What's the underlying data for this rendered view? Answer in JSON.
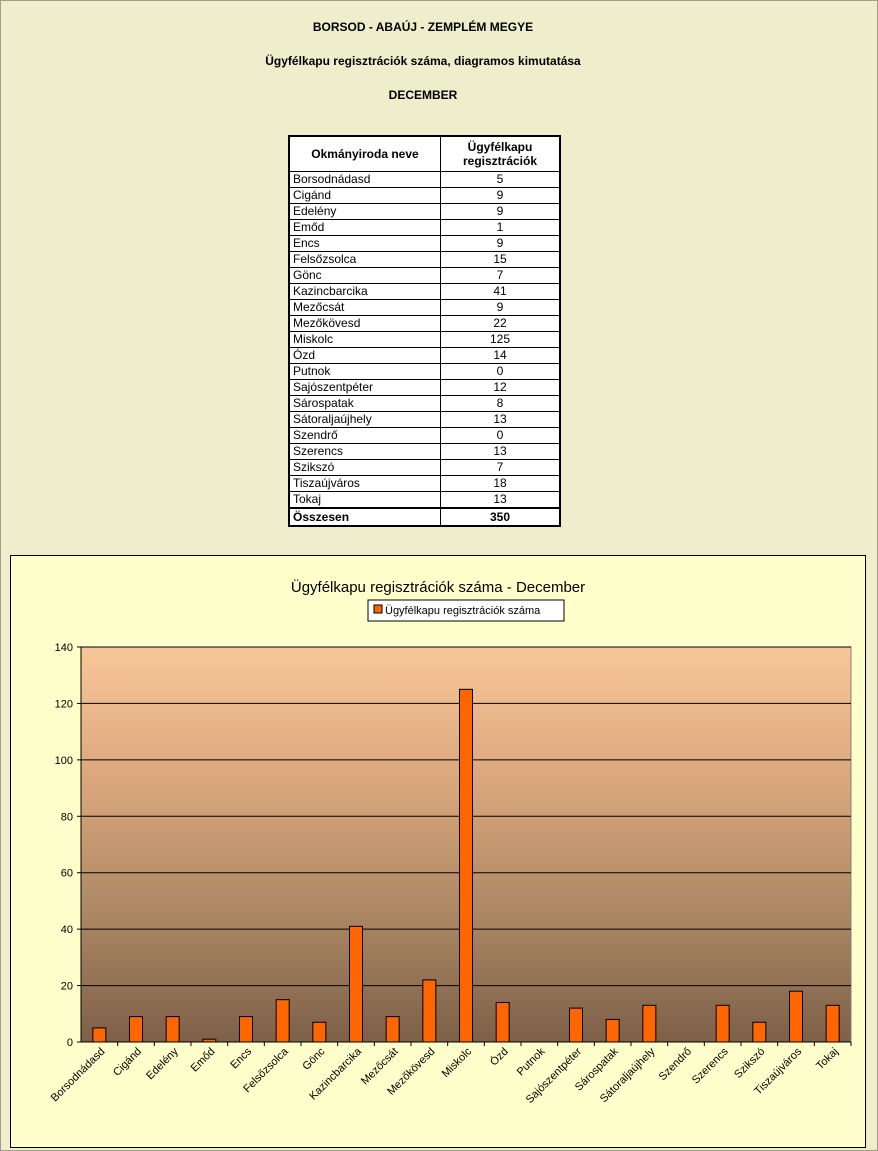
{
  "header": {
    "line1": "BORSOD - ABAÚJ - ZEMPLÉM MEGYE",
    "line2": "Ügyfélkapu regisztrációk száma, diagramos kimutatása",
    "line3": "DECEMBER"
  },
  "table": {
    "col1": "Okmányiroda neve",
    "col2_line1": "Ügyfélkapu",
    "col2_line2": "regisztrációk",
    "rows": [
      {
        "name": "Borsodnádasd",
        "value": "5"
      },
      {
        "name": "Cigánd",
        "value": "9"
      },
      {
        "name": "Edelény",
        "value": "9"
      },
      {
        "name": "Emőd",
        "value": "1"
      },
      {
        "name": "Encs",
        "value": "9"
      },
      {
        "name": "Felsőzsolca",
        "value": "15"
      },
      {
        "name": "Gönc",
        "value": "7"
      },
      {
        "name": "Kazincbarcika",
        "value": "41"
      },
      {
        "name": "Mezőcsát",
        "value": "9"
      },
      {
        "name": "Mezőkövesd",
        "value": "22"
      },
      {
        "name": "Miskolc",
        "value": "125"
      },
      {
        "name": "Ózd",
        "value": "14"
      },
      {
        "name": "Putnok",
        "value": "0"
      },
      {
        "name": "Sajószentpéter",
        "value": "12"
      },
      {
        "name": "Sárospatak",
        "value": "8"
      },
      {
        "name": "Sátoraljaújhely",
        "value": "13"
      },
      {
        "name": "Szendrő",
        "value": "0"
      },
      {
        "name": "Szerencs",
        "value": "13"
      },
      {
        "name": "Szikszó",
        "value": "7"
      },
      {
        "name": "Tiszaújváros",
        "value": "18"
      },
      {
        "name": "Tokaj",
        "value": "13"
      }
    ],
    "total_label": "Összesen",
    "total_value": "350"
  },
  "chart_data": {
    "type": "bar",
    "title": "Ügyfélkapu regisztrációk száma -   December",
    "legend": "top-center",
    "categories": [
      "Borsodnádasd",
      "Cigánd",
      "Edelény",
      "Emőd",
      "Encs",
      "Felsőzsolca",
      "Gönc",
      "Kazincbarcika",
      "Mezőcsát",
      "Mezőkövesd",
      "Miskolc",
      "Ózd",
      "Putnok",
      "Sajószentpéter",
      "Sárospatak",
      "Sátoraljaújhely",
      "Szendrő",
      "Szerencs",
      "Szikszó",
      "Tiszaújváros",
      "Tokaj"
    ],
    "series": [
      {
        "name": "Ügyfélkapu regisztrációk száma",
        "values": [
          5,
          9,
          9,
          1,
          9,
          15,
          7,
          41,
          9,
          22,
          125,
          14,
          0,
          12,
          8,
          13,
          0,
          13,
          7,
          18,
          13
        ],
        "color": "#ff6600"
      }
    ],
    "ylim": [
      0,
      140
    ],
    "yticks": [
      "0",
      "20",
      "40",
      "60",
      "80",
      "100",
      "120",
      "140"
    ],
    "grid": true,
    "xlabel": "",
    "ylabel": ""
  }
}
